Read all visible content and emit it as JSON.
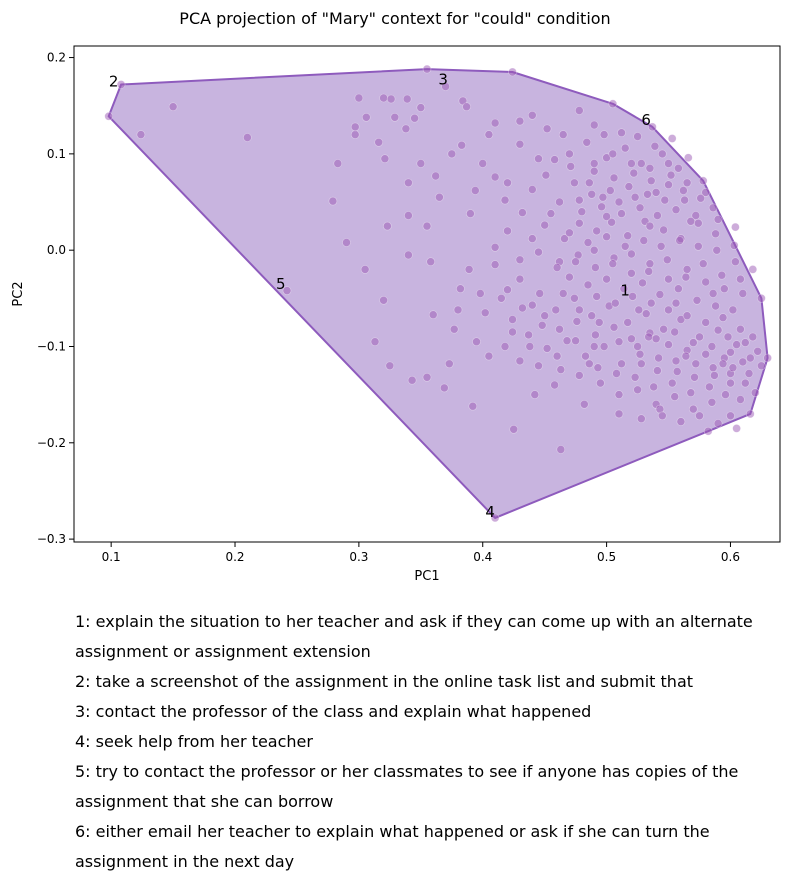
{
  "chart_data": {
    "type": "scatter",
    "title": "PCA projection of \"Mary\" context for \"could\" condition",
    "xlabel": "PC1",
    "ylabel": "PC2",
    "xlim": [
      0.07,
      0.64
    ],
    "ylim": [
      -0.303,
      0.212
    ],
    "xticks": [
      0.1,
      0.2,
      0.3,
      0.4,
      0.5,
      0.6
    ],
    "yticks": [
      -0.3,
      -0.2,
      -0.1,
      0.0,
      0.1,
      0.2
    ],
    "xtick_labels": [
      "0.1",
      "0.2",
      "0.3",
      "0.4",
      "0.5",
      "0.6"
    ],
    "ytick_labels": [
      "−0.3",
      "−0.2",
      "−0.1",
      "0.0",
      "0.1",
      "0.2"
    ],
    "grid": false,
    "colors": {
      "point": "#9b59b6",
      "hull_fill": "#c5b0dd",
      "hull_edge": "#8e5bbd"
    },
    "hull": [
      [
        0.098,
        0.139
      ],
      [
        0.108,
        0.172
      ],
      [
        0.355,
        0.188
      ],
      [
        0.424,
        0.185
      ],
      [
        0.505,
        0.152
      ],
      [
        0.537,
        0.128
      ],
      [
        0.578,
        0.072
      ],
      [
        0.625,
        -0.05
      ],
      [
        0.63,
        -0.112
      ],
      [
        0.616,
        -0.17
      ],
      [
        0.582,
        -0.188
      ],
      [
        0.41,
        -0.278
      ]
    ],
    "labeled_points": [
      {
        "label": "1",
        "x": 0.515,
        "y": -0.042
      },
      {
        "label": "2",
        "x": 0.102,
        "y": 0.175
      },
      {
        "label": "3",
        "x": 0.368,
        "y": 0.177
      },
      {
        "label": "4",
        "x": 0.406,
        "y": -0.272
      },
      {
        "label": "5",
        "x": 0.237,
        "y": -0.035
      },
      {
        "label": "6",
        "x": 0.532,
        "y": 0.135
      }
    ],
    "points": [
      [
        0.098,
        0.139
      ],
      [
        0.108,
        0.172
      ],
      [
        0.355,
        0.188
      ],
      [
        0.424,
        0.185
      ],
      [
        0.505,
        0.152
      ],
      [
        0.537,
        0.128
      ],
      [
        0.578,
        0.072
      ],
      [
        0.625,
        -0.05
      ],
      [
        0.63,
        -0.112
      ],
      [
        0.616,
        -0.17
      ],
      [
        0.582,
        -0.188
      ],
      [
        0.41,
        -0.278
      ],
      [
        0.15,
        0.149
      ],
      [
        0.124,
        0.12
      ],
      [
        0.21,
        0.117
      ],
      [
        0.242,
        -0.042
      ],
      [
        0.3,
        0.158
      ],
      [
        0.32,
        0.158
      ],
      [
        0.326,
        0.157
      ],
      [
        0.339,
        0.157
      ],
      [
        0.37,
        0.17
      ],
      [
        0.384,
        0.155
      ],
      [
        0.387,
        0.149
      ],
      [
        0.35,
        0.148
      ],
      [
        0.345,
        0.137
      ],
      [
        0.329,
        0.138
      ],
      [
        0.306,
        0.138
      ],
      [
        0.297,
        0.12
      ],
      [
        0.338,
        0.126
      ],
      [
        0.316,
        0.112
      ],
      [
        0.297,
        0.128
      ],
      [
        0.283,
        0.09
      ],
      [
        0.321,
        0.095
      ],
      [
        0.34,
        0.07
      ],
      [
        0.362,
        0.077
      ],
      [
        0.35,
        0.09
      ],
      [
        0.383,
        0.109
      ],
      [
        0.41,
        0.132
      ],
      [
        0.43,
        0.134
      ],
      [
        0.452,
        0.126
      ],
      [
        0.279,
        0.051
      ],
      [
        0.29,
        0.008
      ],
      [
        0.305,
        -0.02
      ],
      [
        0.32,
        -0.052
      ],
      [
        0.323,
        0.025
      ],
      [
        0.34,
        0.036
      ],
      [
        0.34,
        -0.005
      ],
      [
        0.355,
        0.025
      ],
      [
        0.358,
        -0.012
      ],
      [
        0.313,
        -0.095
      ],
      [
        0.325,
        -0.12
      ],
      [
        0.343,
        -0.135
      ],
      [
        0.355,
        -0.132
      ],
      [
        0.369,
        -0.143
      ],
      [
        0.373,
        -0.118
      ],
      [
        0.36,
        -0.067
      ],
      [
        0.377,
        -0.082
      ],
      [
        0.392,
        -0.162
      ],
      [
        0.382,
        -0.04
      ],
      [
        0.389,
        -0.02
      ],
      [
        0.41,
        -0.015
      ],
      [
        0.42,
        -0.041
      ],
      [
        0.44,
        -0.057
      ],
      [
        0.463,
        -0.207
      ],
      [
        0.425,
        -0.186
      ],
      [
        0.442,
        -0.15
      ],
      [
        0.458,
        -0.14
      ],
      [
        0.482,
        -0.16
      ],
      [
        0.486,
        -0.118
      ],
      [
        0.394,
        0.062
      ],
      [
        0.39,
        0.038
      ],
      [
        0.41,
        0.076
      ],
      [
        0.418,
        0.052
      ],
      [
        0.432,
        0.039
      ],
      [
        0.44,
        0.063
      ],
      [
        0.451,
        0.078
      ],
      [
        0.462,
        0.05
      ],
      [
        0.471,
        0.087
      ],
      [
        0.486,
        0.07
      ],
      [
        0.497,
        0.055
      ],
      [
        0.51,
        0.05
      ],
      [
        0.523,
        0.055
      ],
      [
        0.54,
        0.06
      ],
      [
        0.55,
        0.068
      ],
      [
        0.563,
        0.052
      ],
      [
        0.45,
        0.026
      ],
      [
        0.466,
        0.012
      ],
      [
        0.478,
        0.028
      ],
      [
        0.492,
        0.02
      ],
      [
        0.504,
        0.029
      ],
      [
        0.517,
        0.015
      ],
      [
        0.531,
        0.03
      ],
      [
        0.546,
        0.021
      ],
      [
        0.56,
        0.012
      ],
      [
        0.574,
        0.028
      ],
      [
        0.588,
        0.017
      ],
      [
        0.603,
        0.005
      ],
      [
        0.445,
        -0.002
      ],
      [
        0.462,
        -0.012
      ],
      [
        0.477,
        -0.005
      ],
      [
        0.491,
        -0.018
      ],
      [
        0.506,
        -0.008
      ],
      [
        0.52,
        -0.024
      ],
      [
        0.535,
        -0.014
      ],
      [
        0.55,
        -0.03
      ],
      [
        0.565,
        -0.02
      ],
      [
        0.58,
        -0.033
      ],
      [
        0.595,
        -0.04
      ],
      [
        0.61,
        -0.045
      ],
      [
        0.43,
        -0.03
      ],
      [
        0.446,
        -0.045
      ],
      [
        0.459,
        -0.062
      ],
      [
        0.474,
        -0.05
      ],
      [
        0.488,
        -0.068
      ],
      [
        0.502,
        -0.058
      ],
      [
        0.517,
        -0.075
      ],
      [
        0.532,
        -0.066
      ],
      [
        0.546,
        -0.082
      ],
      [
        0.56,
        -0.072
      ],
      [
        0.575,
        -0.09
      ],
      [
        0.59,
        -0.083
      ],
      [
        0.605,
        -0.098
      ],
      [
        0.618,
        -0.09
      ],
      [
        0.424,
        -0.072
      ],
      [
        0.437,
        -0.088
      ],
      [
        0.452,
        -0.102
      ],
      [
        0.468,
        -0.094
      ],
      [
        0.483,
        -0.11
      ],
      [
        0.498,
        -0.1
      ],
      [
        0.512,
        -0.118
      ],
      [
        0.527,
        -0.108
      ],
      [
        0.541,
        -0.125
      ],
      [
        0.556,
        -0.115
      ],
      [
        0.571,
        -0.132
      ],
      [
        0.586,
        -0.122
      ],
      [
        0.6,
        -0.138
      ],
      [
        0.615,
        -0.128
      ],
      [
        0.495,
        -0.138
      ],
      [
        0.51,
        -0.15
      ],
      [
        0.525,
        -0.145
      ],
      [
        0.54,
        -0.16
      ],
      [
        0.555,
        -0.152
      ],
      [
        0.57,
        -0.165
      ],
      [
        0.585,
        -0.158
      ],
      [
        0.6,
        -0.172
      ],
      [
        0.51,
        -0.17
      ],
      [
        0.528,
        -0.175
      ],
      [
        0.543,
        -0.165
      ],
      [
        0.47,
        0.1
      ],
      [
        0.484,
        0.112
      ],
      [
        0.5,
        0.096
      ],
      [
        0.515,
        0.106
      ],
      [
        0.528,
        0.09
      ],
      [
        0.545,
        0.1
      ],
      [
        0.558,
        0.085
      ],
      [
        0.49,
        0.082
      ],
      [
        0.506,
        0.075
      ],
      [
        0.522,
        0.08
      ],
      [
        0.536,
        0.072
      ],
      [
        0.552,
        0.078
      ],
      [
        0.48,
        0.04
      ],
      [
        0.496,
        0.045
      ],
      [
        0.512,
        0.038
      ],
      [
        0.527,
        0.044
      ],
      [
        0.541,
        0.036
      ],
      [
        0.556,
        0.042
      ],
      [
        0.572,
        0.036
      ],
      [
        0.586,
        0.044
      ],
      [
        0.47,
        -0.028
      ],
      [
        0.485,
        -0.036
      ],
      [
        0.5,
        -0.03
      ],
      [
        0.514,
        -0.04
      ],
      [
        0.529,
        -0.034
      ],
      [
        0.543,
        -0.046
      ],
      [
        0.558,
        -0.04
      ],
      [
        0.573,
        -0.052
      ],
      [
        0.588,
        -0.058
      ],
      [
        0.602,
        -0.062
      ],
      [
        0.462,
        -0.082
      ],
      [
        0.476,
        -0.074
      ],
      [
        0.491,
        -0.088
      ],
      [
        0.506,
        -0.08
      ],
      [
        0.52,
        -0.092
      ],
      [
        0.535,
        -0.086
      ],
      [
        0.55,
        -0.098
      ],
      [
        0.565,
        -0.104
      ],
      [
        0.58,
        -0.108
      ],
      [
        0.595,
        -0.112
      ],
      [
        0.61,
        -0.116
      ],
      [
        0.622,
        -0.105
      ],
      [
        0.6,
        -0.128
      ],
      [
        0.612,
        -0.138
      ],
      [
        0.62,
        -0.148
      ],
      [
        0.608,
        -0.155
      ],
      [
        0.596,
        -0.15
      ],
      [
        0.583,
        -0.142
      ],
      [
        0.568,
        -0.148
      ],
      [
        0.553,
        -0.138
      ],
      [
        0.538,
        -0.142
      ],
      [
        0.523,
        -0.132
      ],
      [
        0.508,
        -0.128
      ],
      [
        0.493,
        -0.122
      ],
      [
        0.478,
        -0.13
      ],
      [
        0.463,
        -0.124
      ],
      [
        0.545,
        -0.172
      ],
      [
        0.56,
        -0.178
      ],
      [
        0.575,
        -0.172
      ],
      [
        0.59,
        -0.18
      ],
      [
        0.605,
        -0.185
      ],
      [
        0.498,
        0.12
      ],
      [
        0.512,
        0.122
      ],
      [
        0.525,
        0.118
      ],
      [
        0.539,
        0.108
      ],
      [
        0.553,
        0.116
      ],
      [
        0.566,
        0.096
      ],
      [
        0.458,
        0.094
      ],
      [
        0.474,
        0.07
      ],
      [
        0.488,
        0.058
      ],
      [
        0.503,
        0.062
      ],
      [
        0.518,
        0.066
      ],
      [
        0.533,
        0.058
      ],
      [
        0.547,
        0.052
      ],
      [
        0.562,
        0.062
      ],
      [
        0.576,
        0.054
      ],
      [
        0.59,
        0.032
      ],
      [
        0.604,
        0.024
      ],
      [
        0.44,
        0.012
      ],
      [
        0.455,
        0.038
      ],
      [
        0.42,
        0.02
      ],
      [
        0.43,
        -0.01
      ],
      [
        0.415,
        -0.05
      ],
      [
        0.402,
        -0.065
      ],
      [
        0.395,
        -0.095
      ],
      [
        0.405,
        -0.11
      ],
      [
        0.418,
        -0.1
      ],
      [
        0.43,
        -0.115
      ],
      [
        0.38,
        -0.062
      ],
      [
        0.398,
        -0.045
      ],
      [
        0.41,
        0.003
      ],
      [
        0.424,
        -0.085
      ],
      [
        0.438,
        -0.1
      ],
      [
        0.45,
        -0.068
      ],
      [
        0.465,
        -0.045
      ],
      [
        0.478,
        -0.062
      ],
      [
        0.492,
        -0.048
      ],
      [
        0.507,
        -0.055
      ],
      [
        0.521,
        -0.048
      ],
      [
        0.536,
        -0.055
      ],
      [
        0.55,
        -0.062
      ],
      [
        0.565,
        -0.068
      ],
      [
        0.58,
        -0.075
      ],
      [
        0.594,
        -0.07
      ],
      [
        0.608,
        -0.082
      ],
      [
        0.47,
        0.018
      ],
      [
        0.485,
        0.008
      ],
      [
        0.5,
        0.014
      ],
      [
        0.515,
        0.004
      ],
      [
        0.53,
        0.01
      ],
      [
        0.544,
        0.004
      ],
      [
        0.559,
        0.01
      ],
      [
        0.574,
        0.004
      ],
      [
        0.589,
        0.0
      ],
      [
        0.604,
        -0.012
      ],
      [
        0.618,
        -0.02
      ],
      [
        0.46,
        -0.018
      ],
      [
        0.475,
        -0.012
      ],
      [
        0.49,
        0.0
      ],
      [
        0.505,
        -0.014
      ],
      [
        0.52,
        -0.004
      ],
      [
        0.534,
        -0.022
      ],
      [
        0.549,
        -0.01
      ],
      [
        0.564,
        -0.028
      ],
      [
        0.578,
        -0.014
      ],
      [
        0.593,
        -0.026
      ],
      [
        0.608,
        -0.03
      ],
      [
        0.52,
        0.09
      ],
      [
        0.535,
        0.085
      ],
      [
        0.55,
        0.09
      ],
      [
        0.565,
        0.07
      ],
      [
        0.58,
        0.06
      ],
      [
        0.51,
        -0.095
      ],
      [
        0.525,
        -0.1
      ],
      [
        0.54,
        -0.092
      ],
      [
        0.555,
        -0.085
      ],
      [
        0.57,
        -0.096
      ],
      [
        0.585,
        -0.1
      ],
      [
        0.6,
        -0.106
      ],
      [
        0.616,
        -0.112
      ],
      [
        0.625,
        -0.12
      ],
      [
        0.612,
        -0.096
      ],
      [
        0.598,
        -0.09
      ],
      [
        0.49,
        -0.1
      ],
      [
        0.475,
        -0.094
      ],
      [
        0.46,
        -0.11
      ],
      [
        0.445,
        -0.12
      ],
      [
        0.432,
        -0.06
      ],
      [
        0.448,
        -0.078
      ],
      [
        0.528,
        -0.118
      ],
      [
        0.542,
        -0.112
      ],
      [
        0.557,
        -0.126
      ],
      [
        0.572,
        -0.118
      ],
      [
        0.587,
        -0.13
      ],
      [
        0.602,
        -0.122
      ],
      [
        0.5,
        0.035
      ],
      [
        0.535,
        0.025
      ],
      [
        0.568,
        0.03
      ],
      [
        0.49,
        0.09
      ],
      [
        0.505,
        0.1
      ],
      [
        0.478,
        0.052
      ],
      [
        0.526,
        -0.062
      ],
      [
        0.556,
        -0.055
      ],
      [
        0.586,
        -0.045
      ],
      [
        0.494,
        -0.075
      ],
      [
        0.534,
        -0.09
      ],
      [
        0.564,
        -0.11
      ],
      [
        0.594,
        -0.118
      ],
      [
        0.4,
        0.09
      ],
      [
        0.42,
        0.07
      ],
      [
        0.365,
        0.055
      ],
      [
        0.375,
        0.1
      ],
      [
        0.405,
        0.12
      ],
      [
        0.43,
        0.11
      ],
      [
        0.445,
        0.095
      ],
      [
        0.465,
        0.12
      ],
      [
        0.44,
        0.14
      ],
      [
        0.478,
        0.145
      ],
      [
        0.49,
        0.13
      ]
    ]
  },
  "legend": [
    "1: explain the situation to her teacher and ask if they can come up with an alternate assignment or assignment extension",
    "2: take a screenshot of the assignment in the online task list and submit that",
    "3: contact the professor of the class and explain what happened",
    "4: seek help from her teacher",
    "5: try to contact the professor or her classmates to see if anyone has copies of the assignment that she can borrow",
    "6: either email her teacher to explain what happened or ask if she can turn the assignment in the next day"
  ]
}
